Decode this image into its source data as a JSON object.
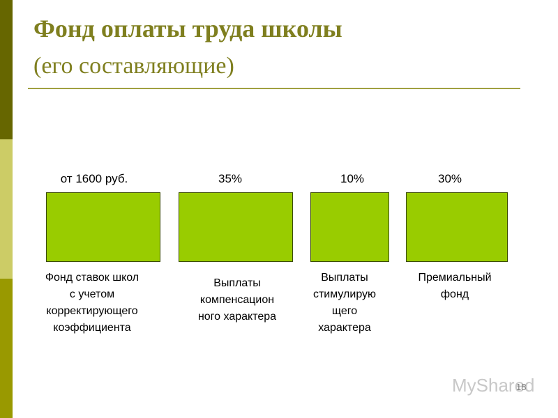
{
  "header": {
    "title": "Фонд оплаты труда школы",
    "subtitle": "(его составляющие)"
  },
  "items": [
    {
      "amount": "от 1600 руб.",
      "description": [
        "Фонд ставок школ",
        "с учетом",
        "корректирующего",
        "коэффициента"
      ]
    },
    {
      "amount": "35%",
      "description": [
        "Выплаты",
        "компенсацион",
        "ного характера"
      ]
    },
    {
      "amount": "10%",
      "description": [
        "Выплаты",
        "стимулирую",
        "щего",
        "характера"
      ]
    },
    {
      "amount": "30%",
      "description": [
        "Премиальный",
        "фонд"
      ]
    }
  ],
  "footer": {
    "watermark": "MyShared",
    "page_number": "18"
  }
}
